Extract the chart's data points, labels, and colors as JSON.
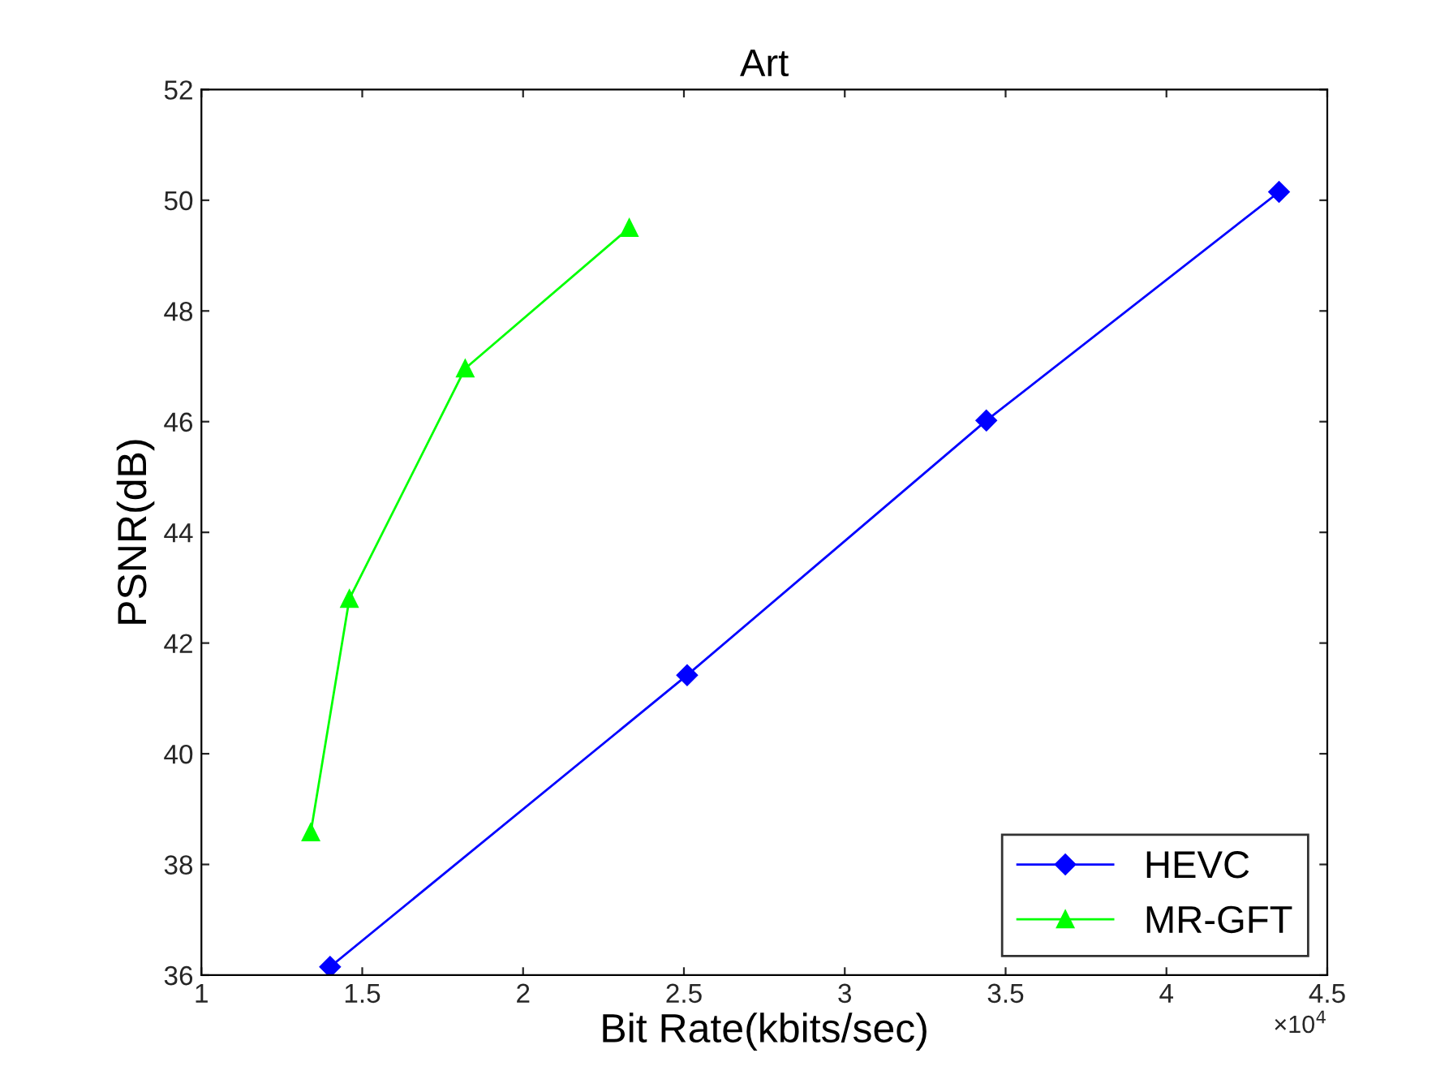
{
  "chart_data": {
    "type": "line",
    "title": "Art",
    "xlabel": "Bit Rate(kbits/sec)",
    "ylabel": "PSNR(dB)",
    "series": [
      {
        "name": "HEVC",
        "color": "#0000ff",
        "marker": "diamond",
        "x": [
          1.4,
          2.51,
          3.44,
          4.35
        ],
        "values": [
          36.15,
          41.42,
          46.02,
          50.15
        ]
      },
      {
        "name": "MR-GFT",
        "color": "#00ff00",
        "marker": "triangle",
        "x": [
          1.34,
          1.46,
          1.82,
          2.33
        ],
        "values": [
          38.58,
          42.8,
          46.96,
          49.5
        ]
      }
    ],
    "xlim": [
      1,
      4.5
    ],
    "xticks": [
      1,
      1.5,
      2,
      2.5,
      3,
      3.5,
      4,
      4.5
    ],
    "ylim": [
      36,
      52
    ],
    "yticks": [
      36,
      38,
      40,
      42,
      44,
      46,
      48,
      50,
      52
    ],
    "annotations": [
      "×10$^{4}$"
    ],
    "grid": false,
    "legend": "bottom right",
    "line_style": "solid"
  }
}
